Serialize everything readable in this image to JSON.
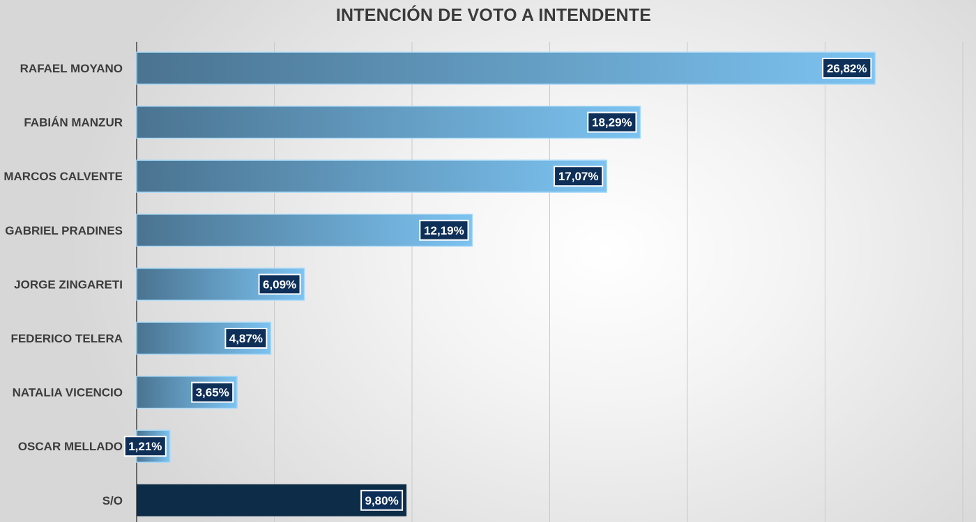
{
  "chart_data": {
    "type": "bar",
    "orientation": "horizontal",
    "title": "INTENCIÓN DE VOTO A INTENDENTE",
    "categories": [
      "RAFAEL MOYANO",
      "FABIÁN MANZUR",
      "MARCOS CALVENTE",
      "GABRIEL PRADINES",
      "JORGE ZINGARETI",
      "FEDERICO TELERA",
      "NATALIA VICENCIO",
      "OSCAR MELLADO",
      "S/O"
    ],
    "values": [
      26.82,
      18.29,
      17.07,
      12.19,
      6.09,
      4.87,
      3.65,
      1.21,
      9.8
    ],
    "value_labels": [
      "26,82%",
      "18,29%",
      "17,07%",
      "12,19%",
      "6,09%",
      "4,87%",
      "3,65%",
      "1,21%",
      "9,80%"
    ],
    "xlim": [
      0,
      30
    ],
    "grid": true,
    "legend": "none",
    "colors": {
      "bar_gradient_start": "#4a7390",
      "bar_gradient_end": "#7cc3f1",
      "bar_outline": "#a9d9f7",
      "so_bar": "#0d2c47",
      "label_box": "#0e2f58",
      "label_box_border": "#ffffff",
      "gridline": "#c9c9c9",
      "axis": "#6a6a6a"
    }
  }
}
